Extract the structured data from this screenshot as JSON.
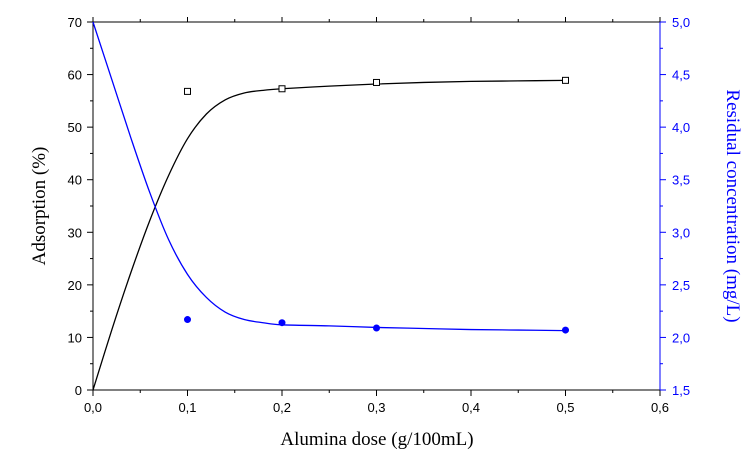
{
  "chart_data": {
    "type": "scatter",
    "xlabel": "Alumina dose (g/100mL)",
    "ylabel": "Adsorption (%)",
    "y2label": "Residual concentration (mg/L)",
    "xlim": [
      0,
      0.6
    ],
    "ylim": [
      0,
      70
    ],
    "y2lim": [
      1.5,
      5.0
    ],
    "grid": false,
    "x_ticks": [
      "0,0",
      "0,1",
      "0,2",
      "0,3",
      "0,4",
      "0,5",
      "0,6"
    ],
    "y_ticks": [
      "0",
      "10",
      "20",
      "30",
      "40",
      "50",
      "60",
      "70"
    ],
    "y2_ticks": [
      "1,5",
      "2,0",
      "2,5",
      "3,0",
      "3,5",
      "4,0",
      "4,5",
      "5,0"
    ],
    "colors": {
      "left_axis": "#000000",
      "right_axis": "#0000ff"
    },
    "series": [
      {
        "axis": "left",
        "marker": "open-square",
        "color": "#000000",
        "x": [
          0.1,
          0.2,
          0.3,
          0.5
        ],
        "y": [
          56.8,
          57.3,
          58.5,
          58.9
        ],
        "fit_x": [
          0,
          0.02,
          0.04,
          0.06,
          0.08,
          0.1,
          0.12,
          0.14,
          0.16,
          0.18,
          0.2,
          0.25,
          0.3,
          0.35,
          0.4,
          0.45,
          0.5
        ],
        "fit_y": [
          0,
          11.5,
          22.3,
          32.2,
          40.8,
          47.8,
          52.5,
          55.2,
          56.5,
          57.0,
          57.3,
          57.8,
          58.2,
          58.5,
          58.7,
          58.8,
          58.9
        ]
      },
      {
        "axis": "right",
        "marker": "filled-circle",
        "color": "#0000ff",
        "x": [
          0.1,
          0.2,
          0.3,
          0.5
        ],
        "y": [
          2.17,
          2.14,
          2.09,
          2.07
        ],
        "fit_x": [
          0,
          0.02,
          0.04,
          0.06,
          0.08,
          0.1,
          0.12,
          0.14,
          0.16,
          0.18,
          0.2,
          0.25,
          0.3,
          0.35,
          0.4,
          0.45,
          0.5
        ],
        "fit_y": [
          5.0,
          4.45,
          3.9,
          3.38,
          2.93,
          2.6,
          2.38,
          2.24,
          2.17,
          2.14,
          2.12,
          2.11,
          2.095,
          2.085,
          2.075,
          2.07,
          2.065
        ]
      }
    ]
  }
}
